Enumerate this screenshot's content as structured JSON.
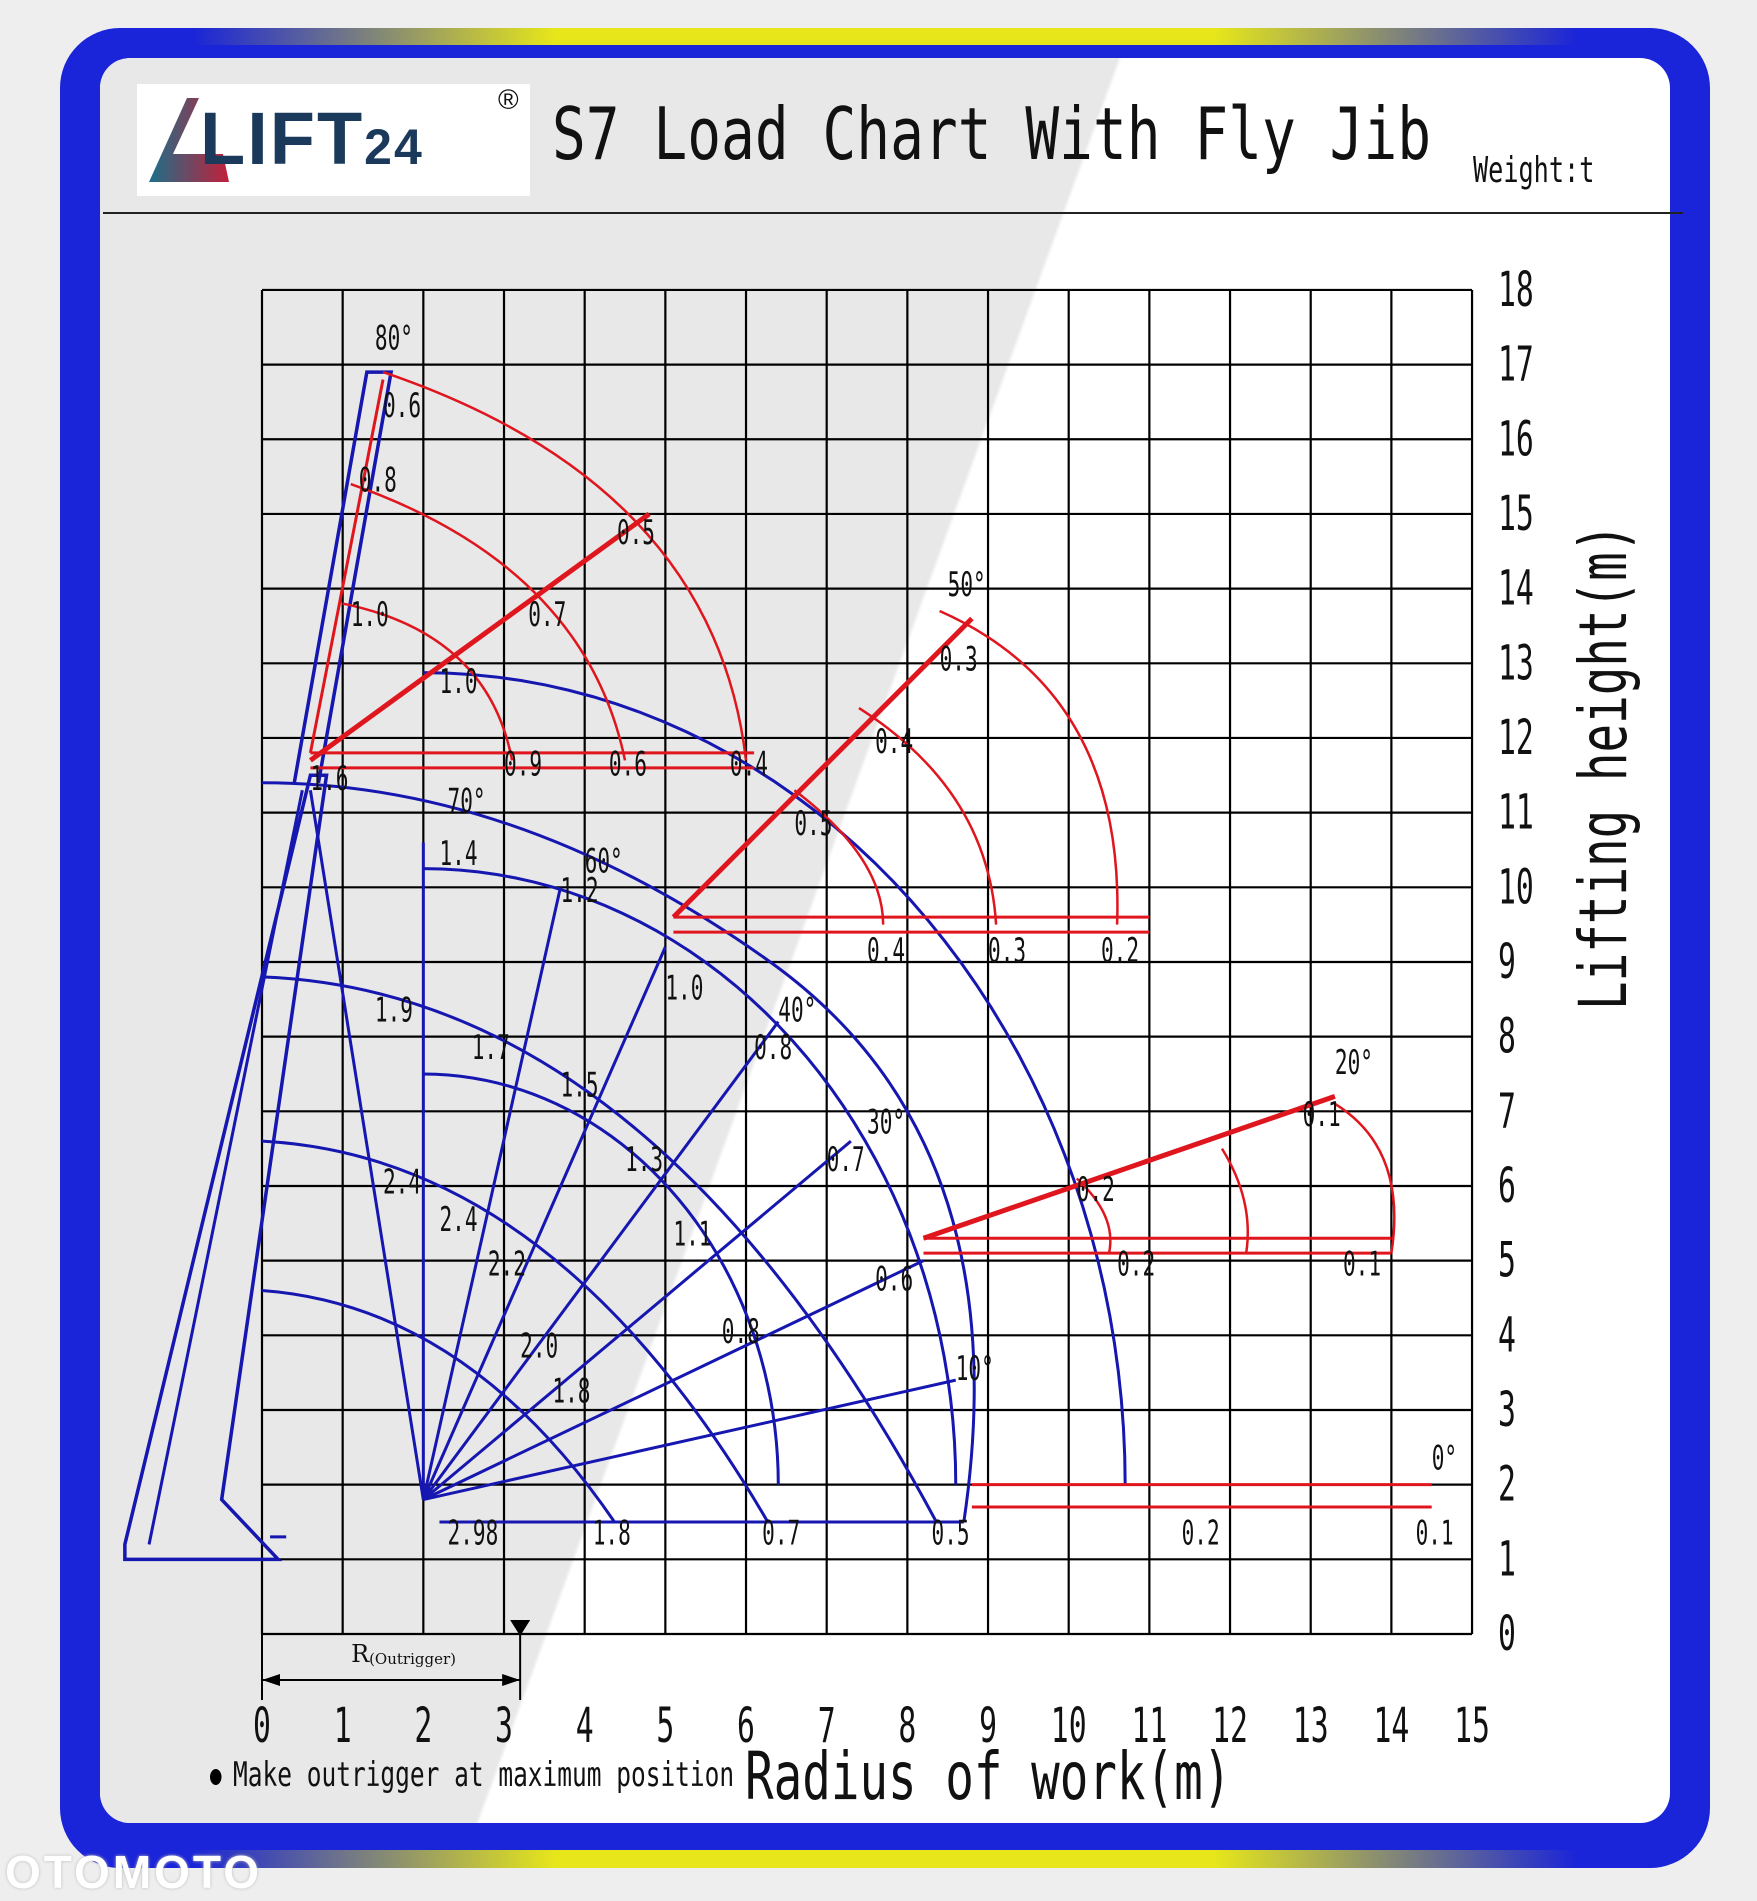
{
  "header": {
    "logo_text": "LIFT",
    "logo_sub": "24",
    "logo_reg": "®",
    "title": "S7 Load Chart With Fly Jib",
    "weight_unit": "Weight:t"
  },
  "footer": {
    "note": "Make outrigger at maximum position",
    "watermark": "OTOMOTO"
  },
  "colors": {
    "main_boom": "#1616b0",
    "fly_jib": "#e0161e",
    "grid": "#000000",
    "frame_blue": "#1a24d8",
    "frame_yellow": "#e6e61a"
  },
  "chart_data": {
    "type": "diagram",
    "title": "S7 Load Chart With Fly Jib",
    "xlabel": "Radius of work(m)",
    "ylabel": "Lifting height(m)",
    "xlim": [
      0,
      15
    ],
    "ylim": [
      0,
      18
    ],
    "grid": true,
    "x_ticks": [
      "0",
      "1",
      "2",
      "3",
      "4",
      "5",
      "6",
      "7",
      "8",
      "9",
      "10",
      "11",
      "12",
      "13",
      "14",
      "15"
    ],
    "y_ticks": [
      "0",
      "1",
      "2",
      "3",
      "4",
      "5",
      "6",
      "7",
      "8",
      "9",
      "10",
      "11",
      "12",
      "13",
      "14",
      "15",
      "16",
      "17",
      "18"
    ],
    "outrigger": {
      "label": "R",
      "label_sub": "(Outrigger)",
      "x_range": [
        0,
        3.2
      ]
    },
    "main_boom": {
      "pivot": [
        2,
        2
      ],
      "arcs_max_radius": [
        4.4,
        6.6,
        8.7
      ],
      "angle_labels": [
        {
          "text": "70°",
          "x": 2.3,
          "y": 11.0
        },
        {
          "text": "60°",
          "x": 4.0,
          "y": 10.2
        },
        {
          "text": "40°",
          "x": 6.4,
          "y": 8.2
        },
        {
          "text": "30°",
          "x": 7.5,
          "y": 6.7
        },
        {
          "text": "10°",
          "x": 8.6,
          "y": 3.4
        }
      ],
      "load_labels": [
        {
          "text": "1.6",
          "x": 0.6,
          "y": 11.3
        },
        {
          "text": "1.4",
          "x": 2.2,
          "y": 10.3
        },
        {
          "text": "1.2",
          "x": 3.7,
          "y": 9.8
        },
        {
          "text": "1.0",
          "x": 5.0,
          "y": 8.5
        },
        {
          "text": "1.9",
          "x": 1.4,
          "y": 8.2
        },
        {
          "text": "1.7",
          "x": 2.6,
          "y": 7.7
        },
        {
          "text": "1.5",
          "x": 3.7,
          "y": 7.2
        },
        {
          "text": "1.3",
          "x": 4.5,
          "y": 6.2
        },
        {
          "text": "1.1",
          "x": 5.1,
          "y": 5.2
        },
        {
          "text": "0.8",
          "x": 6.1,
          "y": 7.7
        },
        {
          "text": "0.7",
          "x": 7.0,
          "y": 6.2
        },
        {
          "text": "0.6",
          "x": 7.6,
          "y": 4.6
        },
        {
          "text": "0.8",
          "x": 5.7,
          "y": 3.9
        },
        {
          "text": "2.4",
          "x": 1.5,
          "y": 5.9
        },
        {
          "text": "2.4",
          "x": 2.2,
          "y": 5.4
        },
        {
          "text": "2.2",
          "x": 2.8,
          "y": 4.8
        },
        {
          "text": "2.0",
          "x": 3.2,
          "y": 3.7
        },
        {
          "text": "1.8",
          "x": 3.6,
          "y": 3.1
        },
        {
          "text": "2.98",
          "x": 2.3,
          "y": 1.2
        },
        {
          "text": "1.8",
          "x": 4.1,
          "y": 1.2
        },
        {
          "text": "0.7",
          "x": 6.2,
          "y": 1.2
        },
        {
          "text": "0.5",
          "x": 8.3,
          "y": 1.2
        }
      ]
    },
    "fly_jib": {
      "angle_labels": [
        {
          "text": "80°",
          "x": 1.4,
          "y": 17.2
        },
        {
          "text": "50°",
          "x": 8.5,
          "y": 13.9
        },
        {
          "text": "20°",
          "x": 13.3,
          "y": 7.5
        },
        {
          "text": "0°",
          "x": 14.5,
          "y": 2.2
        }
      ],
      "load_labels": [
        {
          "text": "0.6",
          "x": 1.5,
          "y": 16.3
        },
        {
          "text": "0.8",
          "x": 1.2,
          "y": 15.3
        },
        {
          "text": "0.5",
          "x": 4.4,
          "y": 14.6
        },
        {
          "text": "1.0",
          "x": 1.1,
          "y": 13.5
        },
        {
          "text": "0.7",
          "x": 3.3,
          "y": 13.5
        },
        {
          "text": "1.0",
          "x": 2.2,
          "y": 12.6
        },
        {
          "text": "0.9",
          "x": 3.0,
          "y": 11.5
        },
        {
          "text": "0.6",
          "x": 4.3,
          "y": 11.5
        },
        {
          "text": "0.4",
          "x": 5.8,
          "y": 11.5
        },
        {
          "text": "0.3",
          "x": 8.4,
          "y": 12.9
        },
        {
          "text": "0.4",
          "x": 7.6,
          "y": 11.8
        },
        {
          "text": "0.5",
          "x": 6.6,
          "y": 10.7
        },
        {
          "text": "0.4",
          "x": 7.5,
          "y": 9.0
        },
        {
          "text": "0.3",
          "x": 9.0,
          "y": 9.0
        },
        {
          "text": "0.2",
          "x": 10.4,
          "y": 9.0
        },
        {
          "text": "0.1",
          "x": 12.9,
          "y": 6.8
        },
        {
          "text": "0.2",
          "x": 10.1,
          "y": 5.8
        },
        {
          "text": "0.2",
          "x": 10.6,
          "y": 4.8
        },
        {
          "text": "0.1",
          "x": 13.4,
          "y": 4.8
        },
        {
          "text": "0.2",
          "x": 11.4,
          "y": 1.2
        },
        {
          "text": "0.1",
          "x": 14.3,
          "y": 1.2
        }
      ]
    }
  }
}
